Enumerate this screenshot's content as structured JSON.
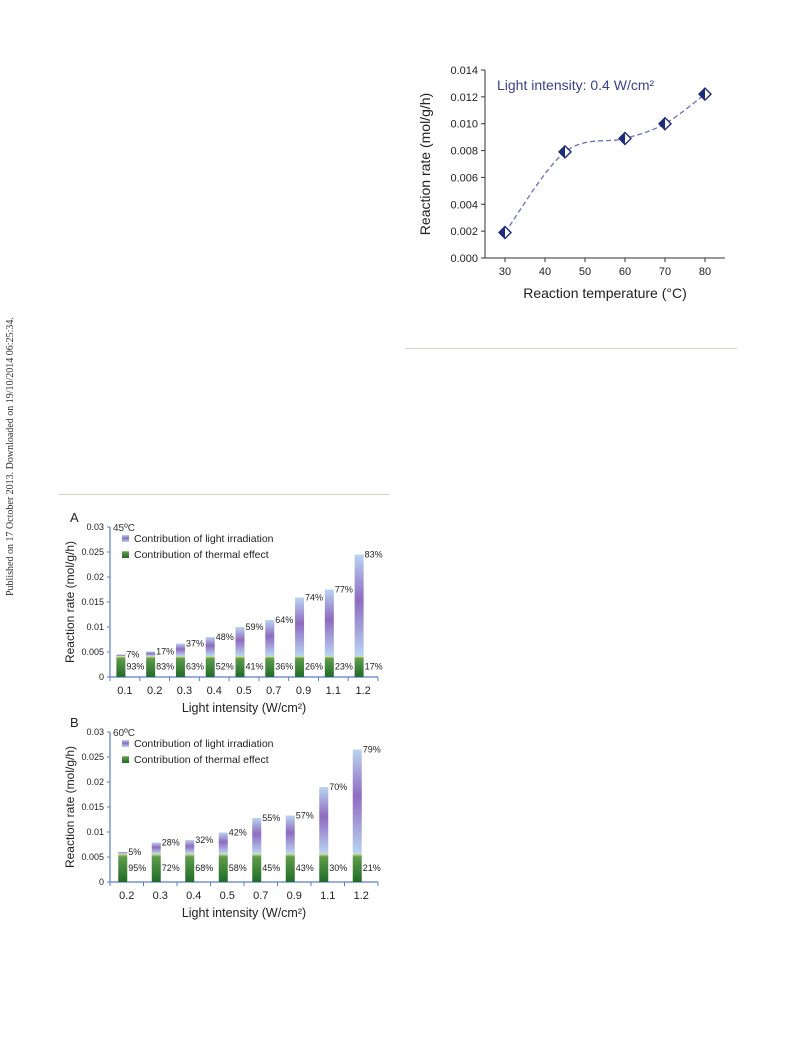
{
  "side_note": "Published on 17 October 2013. Downloaded on 19/10/2014 06:25:34.",
  "chart_data": [
    {
      "type": "line",
      "annotation": "Light intensity: 0.4 W/cm²",
      "xlabel": "Reaction temperature (°C)",
      "ylabel": "Reaction rate (mol/g/h)",
      "xlim": [
        25,
        85
      ],
      "ylim": [
        0,
        0.014
      ],
      "xticks": [
        "30",
        "40",
        "50",
        "60",
        "70",
        "80"
      ],
      "yticks": [
        "0.000",
        "0.002",
        "0.004",
        "0.006",
        "0.008",
        "0.010",
        "0.012",
        "0.014"
      ],
      "x": [
        30,
        45,
        60,
        70,
        80
      ],
      "y": [
        0.0019,
        0.0079,
        0.0089,
        0.01,
        0.0122
      ],
      "marker": "half-filled diamond",
      "line_style": "dashed",
      "color": "#1f2a7a"
    },
    {
      "type": "bar",
      "stacked": true,
      "panel_label": "A",
      "temperature_label": "45ºC",
      "xlabel": "Light intensity (W/cm²)",
      "ylabel": "Reaction rate (mol/g/h)",
      "ylim": [
        0,
        0.03
      ],
      "yticks": [
        "0",
        "0.005",
        "0.01",
        "0.015",
        "0.02",
        "0.025",
        "0.03"
      ],
      "categories": [
        "0.1",
        "0.2",
        "0.3",
        "0.4",
        "0.5",
        "0.7",
        "0.9",
        "1.1",
        "1.2"
      ],
      "series": [
        {
          "name": "Contribution of thermal effect",
          "values": [
            0.0042,
            0.0042,
            0.0042,
            0.0042,
            0.0042,
            0.0042,
            0.0042,
            0.0042,
            0.0042
          ],
          "labels": [
            "93%",
            "83%",
            "63%",
            "52%",
            "41%",
            "36%",
            "26%",
            "23%",
            "17%"
          ]
        },
        {
          "name": "Contribution of light irradiation",
          "values": [
            0.0003,
            0.0009,
            0.0025,
            0.0038,
            0.0058,
            0.0072,
            0.0117,
            0.0133,
            0.0203
          ],
          "labels": [
            "7%",
            "17%",
            "37%",
            "48%",
            "59%",
            "64%",
            "74%",
            "77%",
            "83%"
          ]
        }
      ],
      "colors": {
        "thermal": "#2e7d32",
        "light": "#8e6bbf"
      }
    },
    {
      "type": "bar",
      "stacked": true,
      "panel_label": "B",
      "temperature_label": "60ºC",
      "xlabel": "Light intensity (W/cm²)",
      "ylabel": "Reaction rate (mol/g/h)",
      "ylim": [
        0,
        0.03
      ],
      "yticks": [
        "0",
        "0.005",
        "0.01",
        "0.015",
        "0.02",
        "0.025",
        "0.03"
      ],
      "categories": [
        "0.2",
        "0.3",
        "0.4",
        "0.5",
        "0.7",
        "0.9",
        "1.1",
        "1.2"
      ],
      "series": [
        {
          "name": "Contribution of thermal effect",
          "values": [
            0.0057,
            0.0057,
            0.0057,
            0.0057,
            0.0057,
            0.0057,
            0.0057,
            0.0057
          ],
          "labels": [
            "95%",
            "72%",
            "68%",
            "58%",
            "45%",
            "43%",
            "30%",
            "21%"
          ]
        },
        {
          "name": "Contribution of light irradiation",
          "values": [
            0.0003,
            0.0022,
            0.0027,
            0.0042,
            0.0071,
            0.0076,
            0.0133,
            0.0208
          ],
          "labels": [
            "5%",
            "28%",
            "32%",
            "42%",
            "55%",
            "57%",
            "70%",
            "79%"
          ]
        }
      ],
      "colors": {
        "thermal": "#2e7d32",
        "light": "#8e6bbf"
      }
    }
  ]
}
